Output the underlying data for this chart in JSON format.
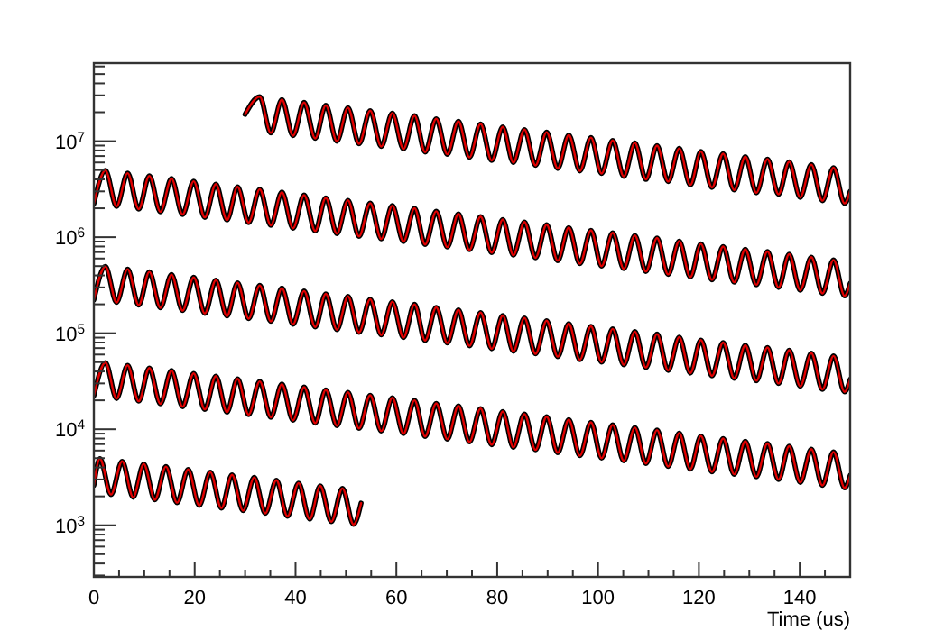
{
  "chart_data": {
    "type": "line",
    "xlabel": "Time (us)",
    "log": "y",
    "grid": false,
    "line_style": "solid",
    "xlim": [
      0,
      150
    ],
    "ylim": [
      290,
      65000000
    ],
    "xticks": [
      0,
      {
        "value": 5,
        "label": null
      },
      {
        "value": 10,
        "label": null
      },
      {
        "value": 15,
        "label": null
      },
      20,
      {
        "value": 25,
        "label": null
      },
      {
        "value": 30,
        "label": null
      },
      {
        "value": 35,
        "label": null
      },
      40,
      {
        "value": 45,
        "label": null
      },
      {
        "value": 50,
        "label": null
      },
      {
        "value": 55,
        "label": null
      },
      60,
      {
        "value": 65,
        "label": null
      },
      {
        "value": 70,
        "label": null
      },
      {
        "value": 75,
        "label": null
      },
      80,
      {
        "value": 85,
        "label": null
      },
      {
        "value": 90,
        "label": null
      },
      {
        "value": 95,
        "label": null
      },
      100,
      {
        "value": 105,
        "label": null
      },
      {
        "value": 110,
        "label": null
      },
      {
        "value": 115,
        "label": null
      },
      120,
      {
        "value": 125,
        "label": null
      },
      {
        "value": 130,
        "label": null
      },
      {
        "value": 135,
        "label": null
      },
      140,
      {
        "value": 145,
        "label": null
      },
      {
        "value": 150,
        "label": null
      }
    ],
    "yticks": [
      {
        "value": 300,
        "label": null
      },
      {
        "value": 400,
        "label": null
      },
      {
        "value": 500,
        "label": null
      },
      {
        "value": 600,
        "label": null
      },
      {
        "value": 700,
        "label": null
      },
      {
        "value": 800,
        "label": null
      },
      {
        "value": 900,
        "label": null
      },
      {
        "value": 1000,
        "label": "10$^{3}$"
      },
      {
        "value": 2000,
        "label": null
      },
      {
        "value": 3000,
        "label": null
      },
      {
        "value": 4000,
        "label": null
      },
      {
        "value": 5000,
        "label": null
      },
      {
        "value": 6000,
        "label": null
      },
      {
        "value": 7000,
        "label": null
      },
      {
        "value": 8000,
        "label": null
      },
      {
        "value": 9000,
        "label": null
      },
      {
        "value": 10000,
        "label": "10$^{4}$"
      },
      {
        "value": 20000,
        "label": null
      },
      {
        "value": 30000,
        "label": null
      },
      {
        "value": 40000,
        "label": null
      },
      {
        "value": 50000,
        "label": null
      },
      {
        "value": 60000,
        "label": null
      },
      {
        "value": 70000,
        "label": null
      },
      {
        "value": 80000,
        "label": null
      },
      {
        "value": 90000,
        "label": null
      },
      {
        "value": 100000,
        "label": "10$^{5}$"
      },
      {
        "value": 200000,
        "label": null
      },
      {
        "value": 300000,
        "label": null
      },
      {
        "value": 400000,
        "label": null
      },
      {
        "value": 500000,
        "label": null
      },
      {
        "value": 600000,
        "label": null
      },
      {
        "value": 700000,
        "label": null
      },
      {
        "value": 800000,
        "label": null
      },
      {
        "value": 900000,
        "label": null
      },
      {
        "value": 1000000,
        "label": "10$^{6}$"
      },
      {
        "value": 2000000,
        "label": null
      },
      {
        "value": 3000000,
        "label": null
      },
      {
        "value": 4000000,
        "label": null
      },
      {
        "value": 5000000,
        "label": null
      },
      {
        "value": 6000000,
        "label": null
      },
      {
        "value": 7000000,
        "label": null
      },
      {
        "value": 8000000,
        "label": null
      },
      {
        "value": 9000000,
        "label": null
      },
      {
        "value": 10000000,
        "label": "10$^{7}$"
      },
      {
        "value": 20000000,
        "label": null
      },
      {
        "value": 30000000,
        "label": null
      },
      {
        "value": 40000000,
        "label": null
      },
      {
        "value": 50000000,
        "label": null
      },
      {
        "value": 60000000,
        "label": null
      }
    ],
    "x": [
      0,
      2.3,
      4.5,
      6.7,
      8.9,
      11.0,
      13.2,
      15.4,
      17.6,
      19.8,
      22.0,
      24.2,
      26.4,
      28.5,
      30.7,
      32.9,
      35.1,
      37.3,
      39.5,
      41.7,
      43.9,
      46.0,
      48.2,
      50.4,
      52.6,
      54.8,
      57.0,
      59.2,
      61.4,
      63.6,
      65.7,
      67.9,
      70.1,
      72.3,
      74.5,
      76.7,
      78.9,
      81.1,
      83.2,
      85.4,
      87.6,
      89.8,
      92.0,
      94.2,
      96.4,
      98.6,
      100.7,
      102.9,
      105.1,
      107.3,
      109.5,
      111.7,
      113.9,
      116.1,
      118.3,
      120.4,
      122.6,
      124.8,
      127.0,
      129.2,
      131.4,
      133.6,
      135.8,
      137.9,
      140.1,
      142.3,
      144.5,
      146.7,
      148.9,
      150
    ],
    "series": [
      {
        "color": "#000000",
        "x": [
          30,
          32.9,
          35.1,
          37.3,
          39.5,
          41.7,
          43.9,
          46.0,
          48.2,
          50.4,
          52.6,
          54.8,
          57.0,
          59.2,
          61.4,
          63.6,
          65.7,
          67.9,
          70.1,
          72.3,
          74.5,
          76.7,
          78.9,
          81.1,
          83.2,
          85.4,
          87.6,
          89.8,
          92.0,
          94.2,
          96.4,
          98.6,
          100.7,
          102.9,
          105.1,
          107.3,
          109.5,
          111.7,
          113.9,
          116.1,
          118.3,
          120.4,
          122.6,
          124.8,
          127.0,
          129.2,
          131.4,
          133.6,
          135.8,
          137.9,
          140.1,
          142.3,
          144.5,
          146.7,
          148.9,
          150
        ],
        "values": [
          19000000,
          29000000,
          12200000,
          27100000,
          11400000,
          25300000,
          10700000,
          23600000,
          10000000,
          22300000,
          9400000,
          20800000,
          8800000,
          19600000,
          8300000,
          18400000,
          7700000,
          17100000,
          7300000,
          16100000,
          6800000,
          15100000,
          6300000,
          14100000,
          6000000,
          13200000,
          5600000,
          12400000,
          5200000,
          11600000,
          4900000,
          10900000,
          4600000,
          10200000,
          4300000,
          9600000,
          4000000,
          9000000,
          3800000,
          8400000,
          3500000,
          7800000,
          3300000,
          7400000,
          3100000,
          6900000,
          2900000,
          6500000,
          2800000,
          6100000,
          2600000,
          5700000,
          2400000,
          5300000,
          2250000,
          3000000
        ]
      },
      {
        "color": "#000000",
        "values": [
          2230000,
          4950000,
          2090000,
          4640000,
          1960000,
          4350000,
          1840000,
          4080000,
          1720000,
          3820000,
          1610000,
          3570000,
          1510000,
          3350000,
          1420000,
          3150000,
          1330000,
          2950000,
          1240000,
          2750000,
          1160000,
          2570000,
          1090000,
          2420000,
          1020000,
          2260000,
          960000,
          2130000,
          900000,
          2000000,
          840000,
          1860000,
          790000,
          1750000,
          740000,
          1640000,
          690000,
          1530000,
          650000,
          1440000,
          610000,
          1350000,
          570000,
          1260000,
          530000,
          1180000,
          500000,
          1110000,
          470000,
          1040000,
          440000,
          980000,
          410000,
          910000,
          385000,
          850000,
          360000,
          800000,
          340000,
          750000,
          320000,
          710000,
          300000,
          665000,
          280000,
          620000,
          260000,
          580000,
          245000,
          330000
        ]
      },
      {
        "color": "#000000",
        "values": [
          223000,
          495000,
          209000,
          464000,
          196000,
          435000,
          184000,
          408000,
          172000,
          382000,
          161000,
          357000,
          151000,
          335000,
          142000,
          315000,
          133000,
          295000,
          124000,
          275000,
          116000,
          257000,
          109000,
          242000,
          102000,
          226000,
          96000,
          213000,
          90000,
          200000,
          84000,
          186000,
          79000,
          175000,
          74000,
          164000,
          69000,
          153000,
          65000,
          144000,
          61000,
          135000,
          57000,
          126000,
          53000,
          118000,
          50000,
          111000,
          47000,
          104000,
          44000,
          98000,
          41000,
          91000,
          38500,
          85000,
          36000,
          80000,
          34000,
          75000,
          32000,
          71000,
          30000,
          66500,
          28000,
          62000,
          26000,
          58000,
          24500,
          33000
        ]
      },
      {
        "color": "#000000",
        "values": [
          22300,
          49500,
          20900,
          46400,
          19600,
          43500,
          18400,
          40800,
          17200,
          38200,
          16100,
          35700,
          15100,
          33500,
          14200,
          31500,
          13300,
          29500,
          12400,
          27500,
          11600,
          25700,
          10900,
          24200,
          10200,
          22600,
          9600,
          21300,
          9000,
          20000,
          8400,
          18600,
          7900,
          17500,
          7400,
          16400,
          6900,
          15300,
          6500,
          14400,
          6100,
          13500,
          5700,
          12600,
          5300,
          11800,
          5000,
          11100,
          4700,
          10400,
          4400,
          9800,
          4100,
          9100,
          3850,
          8500,
          3600,
          8000,
          3400,
          7500,
          3200,
          7100,
          3000,
          6650,
          2800,
          6200,
          2600,
          5800,
          2450,
          3300
        ]
      },
      {
        "color": "#000000",
        "x": [
          0,
          1.2,
          3.4,
          5.6,
          7.8,
          9.9,
          12.1,
          14.3,
          16.5,
          18.7,
          20.9,
          23.1,
          25.3,
          27.4,
          29.6,
          31.8,
          34.0,
          36.2,
          38.4,
          40.6,
          42.8,
          44.9,
          47.1,
          49.3,
          51.5,
          53.0
        ],
        "values": [
          2600,
          4950,
          2090,
          4640,
          1960,
          4350,
          1840,
          4080,
          1720,
          3820,
          1610,
          3570,
          1510,
          3350,
          1420,
          3150,
          1330,
          2950,
          1240,
          2750,
          1160,
          2570,
          1090,
          2420,
          1020,
          1700
        ]
      },
      {
        "color": "#e00000",
        "x": [
          30,
          32.9,
          35.1,
          37.3,
          39.5,
          41.7,
          43.9,
          46.0,
          48.2,
          50.4,
          52.6,
          54.8,
          57.0,
          59.2,
          61.4,
          63.6,
          65.7,
          67.9,
          70.1,
          72.3,
          74.5,
          76.7,
          78.9,
          81.1,
          83.2,
          85.4,
          87.6,
          89.8,
          92.0,
          94.2,
          96.4,
          98.6,
          100.7,
          102.9,
          105.1,
          107.3,
          109.5,
          111.7,
          113.9,
          116.1,
          118.3,
          120.4,
          122.6,
          124.8,
          127.0,
          129.2,
          131.4,
          133.6,
          135.8,
          137.9,
          140.1,
          142.3,
          144.5,
          146.7,
          148.9,
          150
        ],
        "values": [
          19000000,
          29000000,
          12200000,
          27100000,
          11400000,
          25300000,
          10700000,
          23600000,
          10000000,
          22300000,
          9400000,
          20800000,
          8800000,
          19600000,
          8300000,
          18400000,
          7700000,
          17100000,
          7300000,
          16100000,
          6800000,
          15100000,
          6300000,
          14100000,
          6000000,
          13200000,
          5600000,
          12400000,
          5200000,
          11600000,
          4900000,
          10900000,
          4600000,
          10200000,
          4300000,
          9600000,
          4000000,
          9000000,
          3800000,
          8400000,
          3500000,
          7800000,
          3300000,
          7400000,
          3100000,
          6900000,
          2900000,
          6500000,
          2800000,
          6100000,
          2600000,
          5700000,
          2400000,
          5300000,
          2250000,
          3000000
        ]
      },
      {
        "color": "#e00000",
        "values": [
          2230000,
          4950000,
          2090000,
          4640000,
          1960000,
          4350000,
          1840000,
          4080000,
          1720000,
          3820000,
          1610000,
          3570000,
          1510000,
          3350000,
          1420000,
          3150000,
          1330000,
          2950000,
          1240000,
          2750000,
          1160000,
          2570000,
          1090000,
          2420000,
          1020000,
          2260000,
          960000,
          2130000,
          900000,
          2000000,
          840000,
          1860000,
          790000,
          1750000,
          740000,
          1640000,
          690000,
          1530000,
          650000,
          1440000,
          610000,
          1350000,
          570000,
          1260000,
          530000,
          1180000,
          500000,
          1110000,
          470000,
          1040000,
          440000,
          980000,
          410000,
          910000,
          385000,
          850000,
          360000,
          800000,
          340000,
          750000,
          320000,
          710000,
          300000,
          665000,
          280000,
          620000,
          260000,
          580000,
          245000,
          330000
        ]
      },
      {
        "color": "#e00000",
        "values": [
          223000,
          495000,
          209000,
          464000,
          196000,
          435000,
          184000,
          408000,
          172000,
          382000,
          161000,
          357000,
          151000,
          335000,
          142000,
          315000,
          133000,
          295000,
          124000,
          275000,
          116000,
          257000,
          109000,
          242000,
          102000,
          226000,
          96000,
          213000,
          90000,
          200000,
          84000,
          186000,
          79000,
          175000,
          74000,
          164000,
          69000,
          153000,
          65000,
          144000,
          61000,
          135000,
          57000,
          126000,
          53000,
          118000,
          50000,
          111000,
          47000,
          104000,
          44000,
          98000,
          41000,
          91000,
          38500,
          85000,
          36000,
          80000,
          34000,
          75000,
          32000,
          71000,
          30000,
          66500,
          28000,
          62000,
          26000,
          58000,
          24500,
          33000
        ]
      },
      {
        "color": "#e00000",
        "values": [
          22300,
          49500,
          20900,
          46400,
          19600,
          43500,
          18400,
          40800,
          17200,
          38200,
          16100,
          35700,
          15100,
          33500,
          14200,
          31500,
          13300,
          29500,
          12400,
          27500,
          11600,
          25700,
          10900,
          24200,
          10200,
          22600,
          9600,
          21300,
          9000,
          20000,
          8400,
          18600,
          7900,
          17500,
          7400,
          16400,
          6900,
          15300,
          6500,
          14400,
          6100,
          13500,
          5700,
          12600,
          5300,
          11800,
          5000,
          11100,
          4700,
          10400,
          4400,
          9800,
          4100,
          9100,
          3850,
          8500,
          3600,
          8000,
          3400,
          7500,
          3200,
          7100,
          3000,
          6650,
          2800,
          6200,
          2600,
          5800,
          2450,
          3300
        ]
      },
      {
        "color": "#e00000",
        "x": [
          0,
          1.2,
          3.4,
          5.6,
          7.8,
          9.9,
          12.1,
          14.3,
          16.5,
          18.7,
          20.9,
          23.1,
          25.3,
          27.4,
          29.6,
          31.8,
          34.0,
          36.2,
          38.4,
          40.6,
          42.8,
          44.9,
          47.1,
          49.3,
          51.5,
          53.0
        ],
        "values": [
          2600,
          4950,
          2090,
          4640,
          1960,
          4350,
          1840,
          4080,
          1720,
          3820,
          1610,
          3570,
          1510,
          3350,
          1420,
          3150,
          1330,
          2950,
          1240,
          2750,
          1160,
          2570,
          1090,
          2420,
          1020,
          1700
        ]
      }
    ]
  }
}
